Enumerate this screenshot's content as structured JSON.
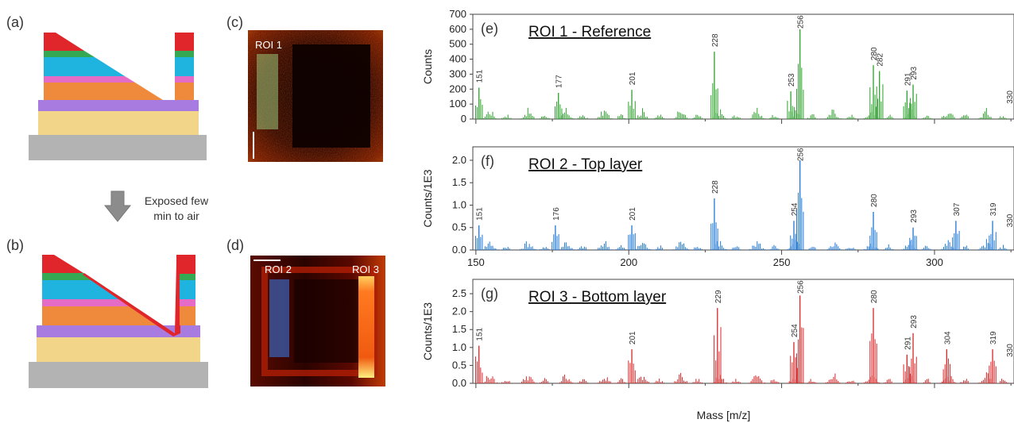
{
  "panels": {
    "a": "(a)",
    "b": "(b)",
    "c": "(c)",
    "d": "(d)",
    "e": "(e)",
    "f": "(f)",
    "g": "(g)"
  },
  "arrow_note": [
    "Exposed few",
    "min to air"
  ],
  "roi": {
    "roi1": "ROI 1",
    "roi2": "ROI 2",
    "roi3": "ROI 3"
  },
  "colors": {
    "red": "#e0262a",
    "green": "#34a853",
    "cyan": "#1fb3e0",
    "pink": "#e56cc6",
    "orange": "#ef8a3c",
    "purple": "#a77be0",
    "yellow": "#f3d58a",
    "gray": "#b3b3b3",
    "green_series": "#2ca02c",
    "blue_series": "#1f77d4",
    "red_series": "#d62728"
  },
  "chart_data": [
    {
      "type": "bar",
      "title": "ROI 1 - Reference",
      "ylabel": "Counts",
      "xlabel": "",
      "xlim": [
        149,
        326
      ],
      "ylim": [
        0,
        700
      ],
      "yticks": [
        0,
        100,
        200,
        300,
        400,
        500,
        600,
        700
      ],
      "ytick_labels": [
        "0",
        "100",
        "200",
        "300",
        "400",
        "500",
        "600",
        "700"
      ],
      "xticks": [],
      "color": "#2ca02c",
      "peaks": [
        {
          "mz": 151,
          "value": 210,
          "label": "151"
        },
        {
          "mz": 177,
          "value": 175,
          "label": "177"
        },
        {
          "mz": 201,
          "value": 195,
          "label": "201"
        },
        {
          "mz": 228,
          "value": 450,
          "label": "228"
        },
        {
          "mz": 253,
          "value": 185,
          "label": "253"
        },
        {
          "mz": 256,
          "value": 600,
          "label": "256"
        },
        {
          "mz": 280,
          "value": 360,
          "label": "280"
        },
        {
          "mz": 282,
          "value": 320,
          "label": "282"
        },
        {
          "mz": 291,
          "value": 190,
          "label": "291"
        },
        {
          "mz": 293,
          "value": 230,
          "label": "293"
        },
        {
          "mz": 330,
          "value": 70,
          "label": "330"
        }
      ]
    },
    {
      "type": "bar",
      "title": "ROI 2 -  Top layer",
      "ylabel": "Counts/1E3",
      "xlabel": "",
      "xlim": [
        149,
        326
      ],
      "ylim": [
        0,
        2.3
      ],
      "yticks": [
        0,
        0.5,
        1.0,
        1.5,
        2.0
      ],
      "ytick_labels": [
        "0.0",
        "0.5",
        "1.0",
        "1.5",
        "2.0"
      ],
      "xticks": [
        150,
        200,
        250,
        300
      ],
      "color": "#1f77d4",
      "peaks": [
        {
          "mz": 151,
          "value": 0.55,
          "label": "151"
        },
        {
          "mz": 176,
          "value": 0.55,
          "label": "176"
        },
        {
          "mz": 201,
          "value": 0.55,
          "label": "201"
        },
        {
          "mz": 228,
          "value": 1.15,
          "label": "228"
        },
        {
          "mz": 254,
          "value": 0.65,
          "label": "254"
        },
        {
          "mz": 256,
          "value": 2.0,
          "label": "256"
        },
        {
          "mz": 280,
          "value": 0.85,
          "label": "280"
        },
        {
          "mz": 293,
          "value": 0.5,
          "label": "293"
        },
        {
          "mz": 307,
          "value": 0.65,
          "label": "307"
        },
        {
          "mz": 319,
          "value": 0.65,
          "label": "319"
        },
        {
          "mz": 330,
          "value": 0.4,
          "label": "330"
        }
      ]
    },
    {
      "type": "bar",
      "title": "ROI 3 - Bottom layer",
      "ylabel": "Counts/1E3",
      "xlabel": "Mass [m/z]",
      "xlim": [
        149,
        326
      ],
      "ylim": [
        0,
        2.9
      ],
      "yticks": [
        0,
        0.5,
        1.0,
        1.5,
        2.0,
        2.5
      ],
      "ytick_labels": [
        "0.0",
        "0.5",
        "1.0",
        "1.5",
        "2.0",
        "2.5"
      ],
      "xticks": [],
      "color": "#d62728",
      "peaks": [
        {
          "mz": 151,
          "value": 1.05,
          "label": "151"
        },
        {
          "mz": 201,
          "value": 0.95,
          "label": "201"
        },
        {
          "mz": 229,
          "value": 2.1,
          "label": "229"
        },
        {
          "mz": 254,
          "value": 1.15,
          "label": "254"
        },
        {
          "mz": 256,
          "value": 2.45,
          "label": "256"
        },
        {
          "mz": 280,
          "value": 2.1,
          "label": "280"
        },
        {
          "mz": 291,
          "value": 0.8,
          "label": "291"
        },
        {
          "mz": 293,
          "value": 1.4,
          "label": "293"
        },
        {
          "mz": 304,
          "value": 0.95,
          "label": "304"
        },
        {
          "mz": 319,
          "value": 0.95,
          "label": "319"
        },
        {
          "mz": 330,
          "value": 0.6,
          "label": "330"
        }
      ]
    }
  ]
}
